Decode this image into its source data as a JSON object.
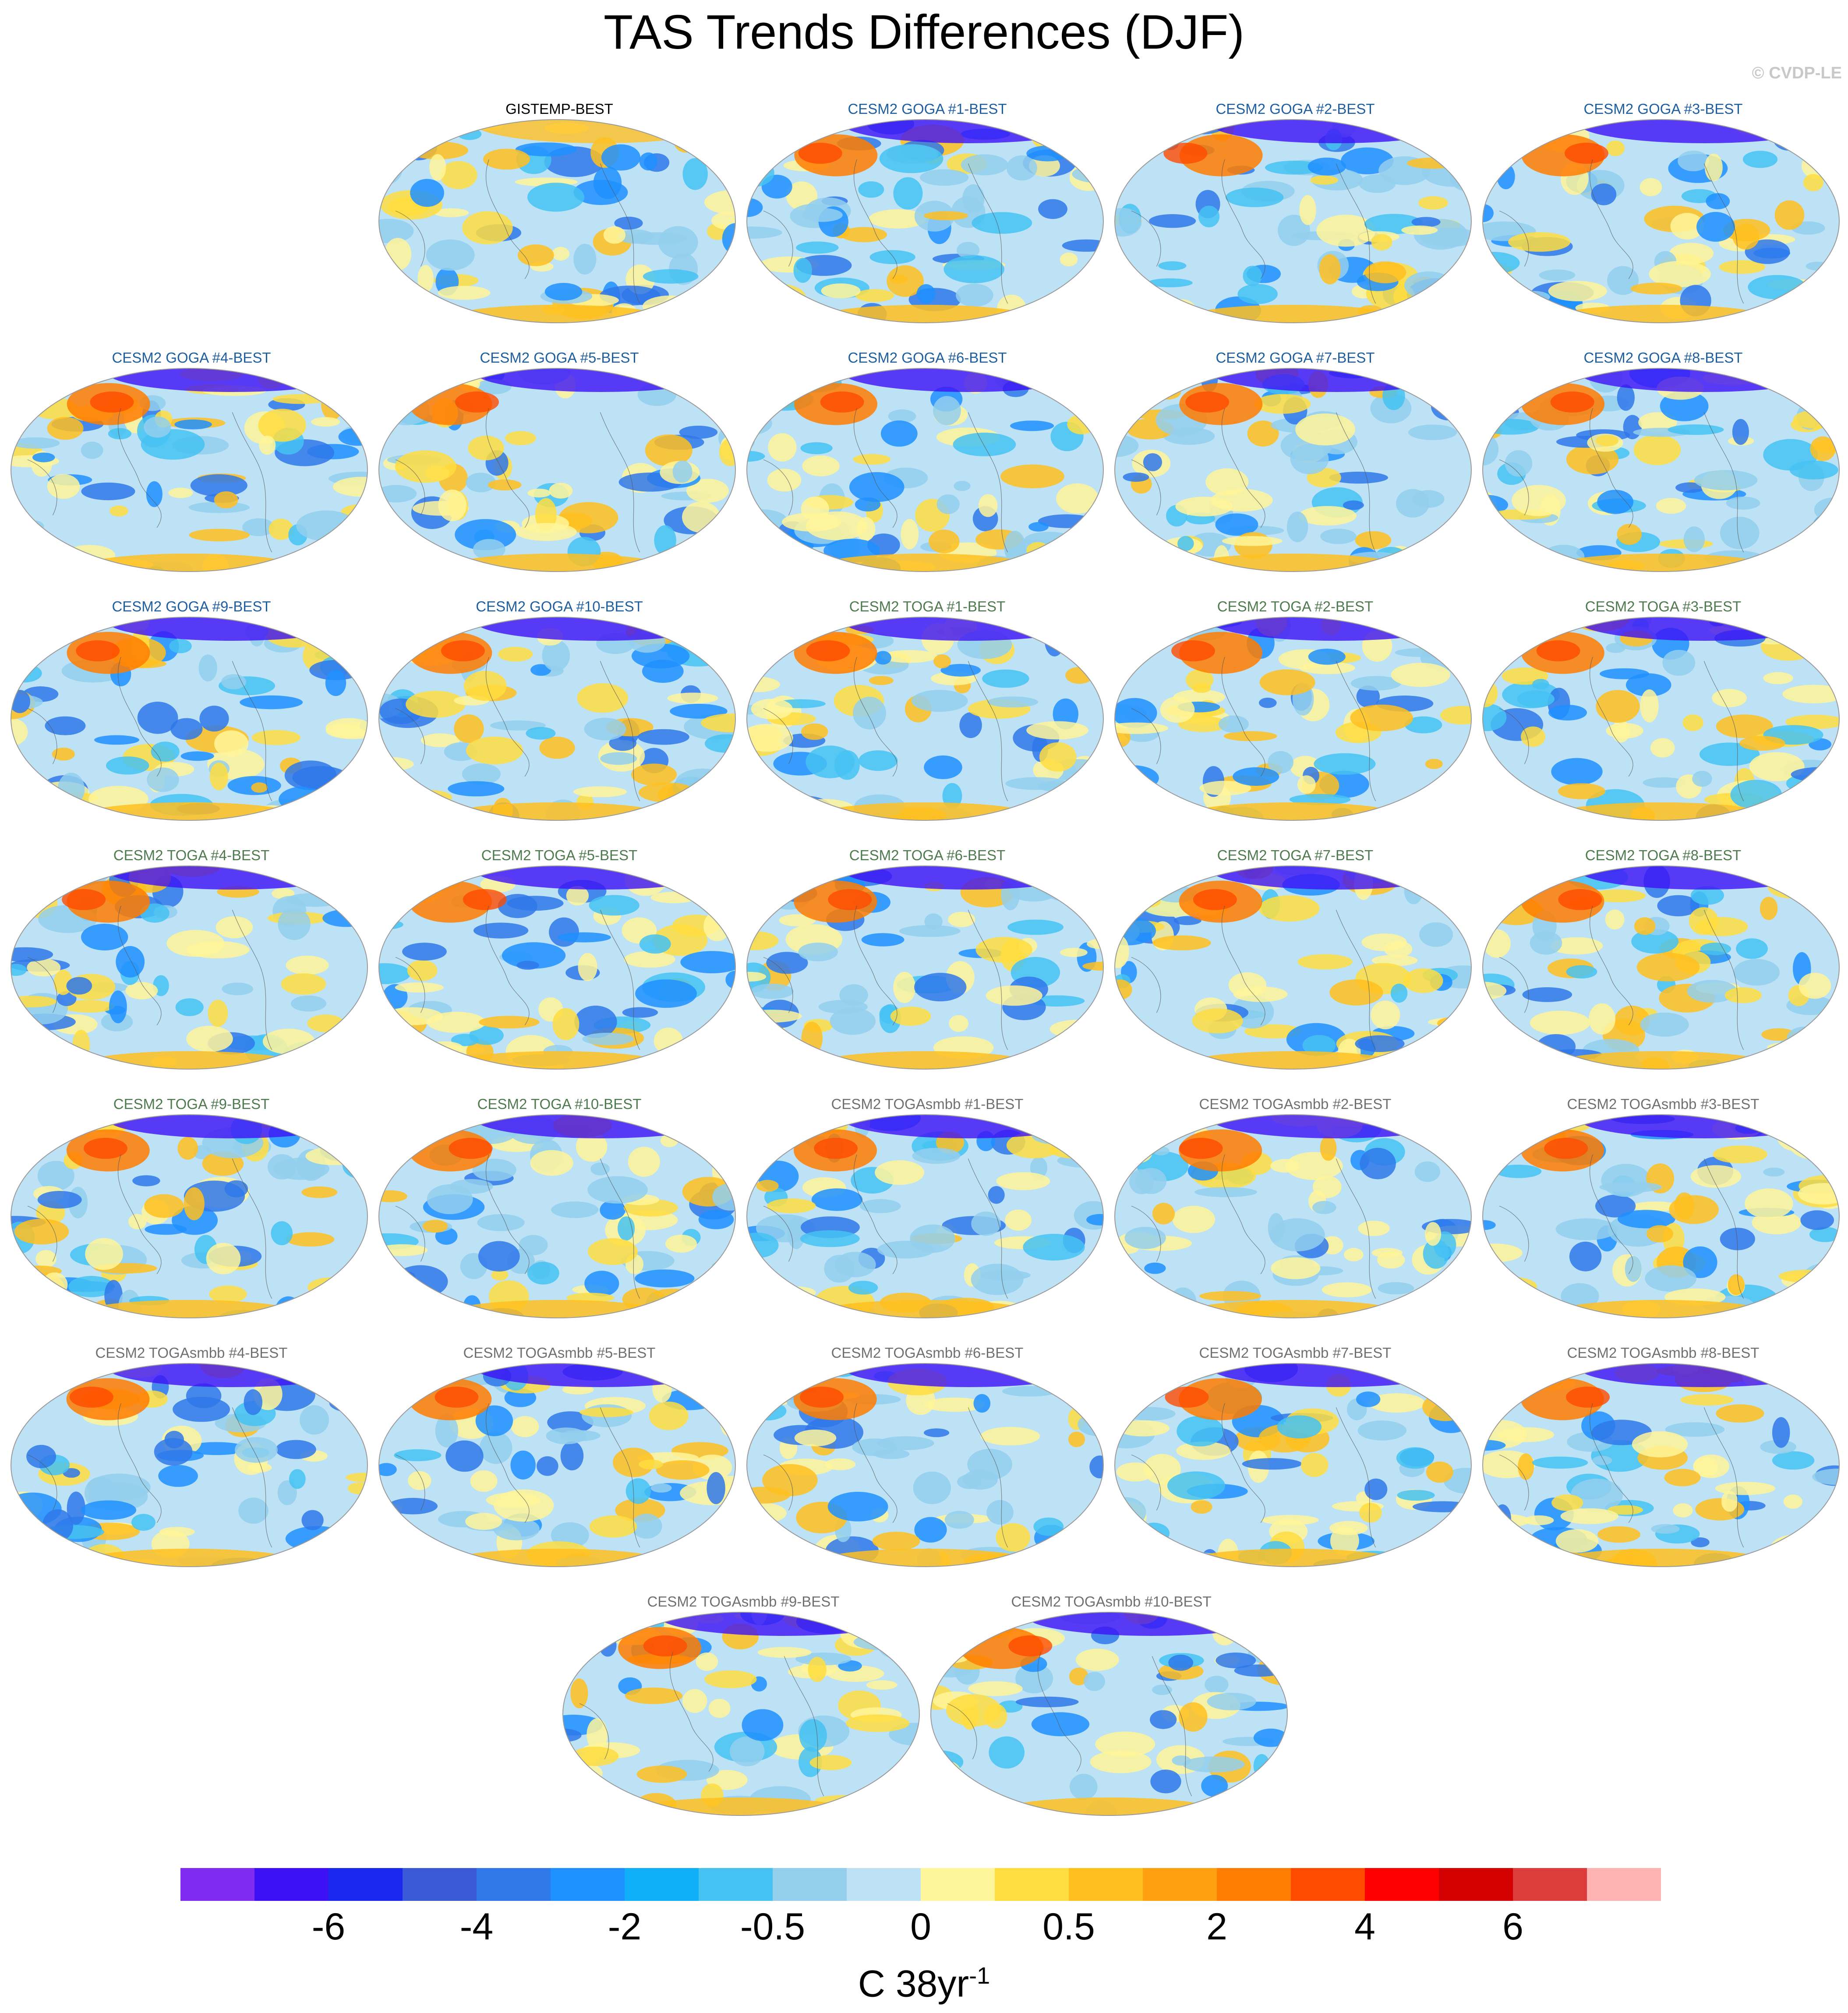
{
  "title": "TAS Trends Differences (DJF)",
  "copyright": "© CVDP-LE",
  "colors": {
    "obs_title": "#000000",
    "goga_title": "#1f5fa0",
    "toga_title": "#4f7a4f",
    "togasmbb_title": "#707070"
  },
  "panels": [
    {
      "label": "GISTEMP-BEST",
      "group": "obs",
      "row": 0,
      "col": 1
    },
    {
      "label": "CESM2 GOGA #1-BEST",
      "group": "goga",
      "row": 0,
      "col": 2
    },
    {
      "label": "CESM2 GOGA #2-BEST",
      "group": "goga",
      "row": 0,
      "col": 3
    },
    {
      "label": "CESM2 GOGA #3-BEST",
      "group": "goga",
      "row": 0,
      "col": 4
    },
    {
      "label": "CESM2 GOGA #4-BEST",
      "group": "goga",
      "row": 1,
      "col": 0
    },
    {
      "label": "CESM2 GOGA #5-BEST",
      "group": "goga",
      "row": 1,
      "col": 1
    },
    {
      "label": "CESM2 GOGA #6-BEST",
      "group": "goga",
      "row": 1,
      "col": 2
    },
    {
      "label": "CESM2 GOGA #7-BEST",
      "group": "goga",
      "row": 1,
      "col": 3
    },
    {
      "label": "CESM2 GOGA #8-BEST",
      "group": "goga",
      "row": 1,
      "col": 4
    },
    {
      "label": "CESM2 GOGA #9-BEST",
      "group": "goga",
      "row": 2,
      "col": 0
    },
    {
      "label": "CESM2 GOGA #10-BEST",
      "group": "goga",
      "row": 2,
      "col": 1
    },
    {
      "label": "CESM2 TOGA #1-BEST",
      "group": "toga",
      "row": 2,
      "col": 2
    },
    {
      "label": "CESM2 TOGA #2-BEST",
      "group": "toga",
      "row": 2,
      "col": 3
    },
    {
      "label": "CESM2 TOGA #3-BEST",
      "group": "toga",
      "row": 2,
      "col": 4
    },
    {
      "label": "CESM2 TOGA #4-BEST",
      "group": "toga",
      "row": 3,
      "col": 0
    },
    {
      "label": "CESM2 TOGA #5-BEST",
      "group": "toga",
      "row": 3,
      "col": 1
    },
    {
      "label": "CESM2 TOGA #6-BEST",
      "group": "toga",
      "row": 3,
      "col": 2
    },
    {
      "label": "CESM2 TOGA #7-BEST",
      "group": "toga",
      "row": 3,
      "col": 3
    },
    {
      "label": "CESM2 TOGA #8-BEST",
      "group": "toga",
      "row": 3,
      "col": 4
    },
    {
      "label": "CESM2 TOGA #9-BEST",
      "group": "toga",
      "row": 4,
      "col": 0
    },
    {
      "label": "CESM2 TOGA #10-BEST",
      "group": "toga",
      "row": 4,
      "col": 1
    },
    {
      "label": "CESM2 TOGAsmbb #1-BEST",
      "group": "togasmbb",
      "row": 4,
      "col": 2
    },
    {
      "label": "CESM2 TOGAsmbb #2-BEST",
      "group": "togasmbb",
      "row": 4,
      "col": 3
    },
    {
      "label": "CESM2 TOGAsmbb #3-BEST",
      "group": "togasmbb",
      "row": 4,
      "col": 4
    },
    {
      "label": "CESM2 TOGAsmbb #4-BEST",
      "group": "togasmbb",
      "row": 5,
      "col": 0
    },
    {
      "label": "CESM2 TOGAsmbb #5-BEST",
      "group": "togasmbb",
      "row": 5,
      "col": 1
    },
    {
      "label": "CESM2 TOGAsmbb #6-BEST",
      "group": "togasmbb",
      "row": 5,
      "col": 2
    },
    {
      "label": "CESM2 TOGAsmbb #7-BEST",
      "group": "togasmbb",
      "row": 5,
      "col": 3
    },
    {
      "label": "CESM2 TOGAsmbb #8-BEST",
      "group": "togasmbb",
      "row": 5,
      "col": 4
    },
    {
      "label": "CESM2 TOGAsmbb #9-BEST",
      "group": "togasmbb",
      "row": 6,
      "col": 1.5
    },
    {
      "label": "CESM2 TOGAsmbb #10-BEST",
      "group": "togasmbb",
      "row": 6,
      "col": 2.5
    }
  ],
  "colorbar": {
    "colors": [
      "#7f2bf0",
      "#3d10f5",
      "#1a28f0",
      "#3b5ad8",
      "#2f78ea",
      "#1e90ff",
      "#10b0f8",
      "#45c2f2",
      "#93cfed",
      "#bde2f6",
      "#fff59a",
      "#ffdd40",
      "#ffc020",
      "#ffa010",
      "#ff7d00",
      "#ff4b00",
      "#ff0000",
      "#d20000",
      "#dc3c3c",
      "#ffb2b2"
    ],
    "labels": [
      {
        "text": "-6",
        "boundary": 2
      },
      {
        "text": "-4",
        "boundary": 4
      },
      {
        "text": "-2",
        "boundary": 6
      },
      {
        "text": "-0.5",
        "boundary": 8
      },
      {
        "text": "0",
        "boundary": 10
      },
      {
        "text": "0.5",
        "boundary": 12
      },
      {
        "text": "2",
        "boundary": 14
      },
      {
        "text": "4",
        "boundary": 16
      },
      {
        "text": "6",
        "boundary": 18
      }
    ]
  },
  "units": {
    "base": "C 38yr",
    "sup": "-1"
  }
}
